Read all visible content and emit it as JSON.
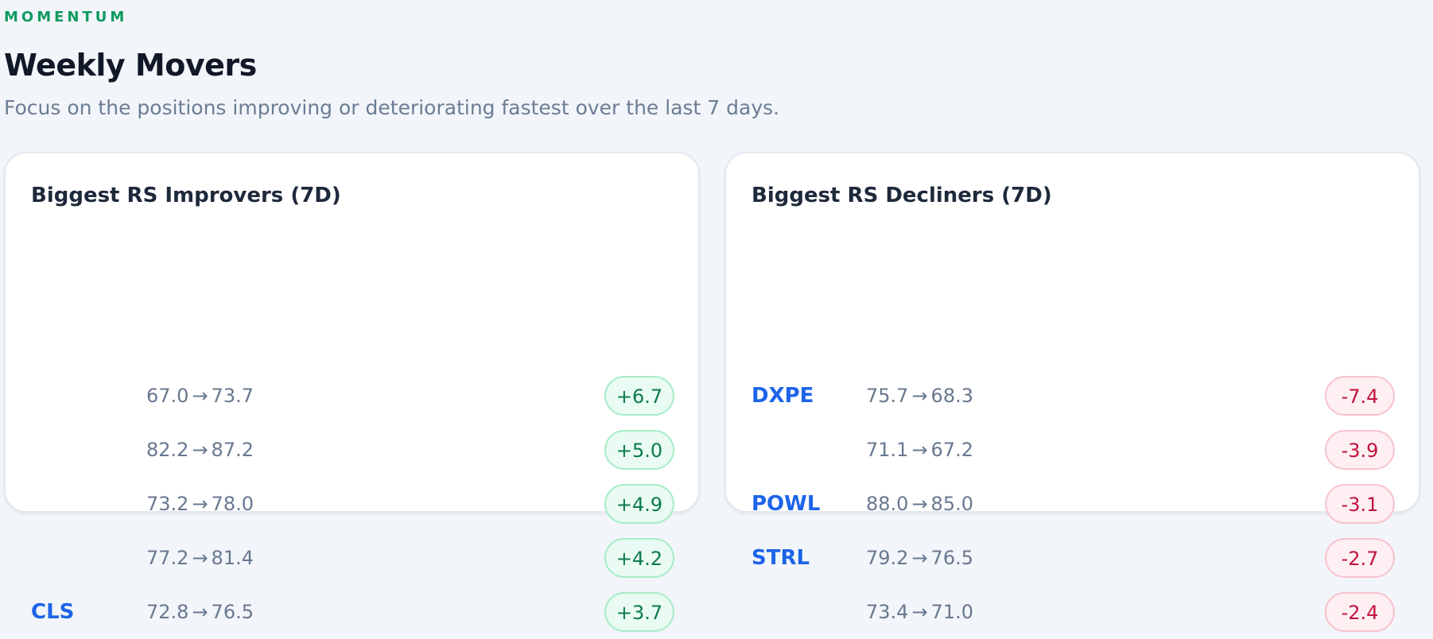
{
  "header": {
    "eyebrow": "MOMENTUM",
    "title": "Weekly Movers",
    "subtitle": "Focus on the positions improving or deteriorating fastest over the last 7 days."
  },
  "arrow_glyph": "→",
  "improvers": {
    "title": "Biggest RS Improvers (7D)",
    "rows": [
      {
        "ticker": "",
        "from": "67.0",
        "to": "73.7",
        "delta": "+6.7"
      },
      {
        "ticker": "",
        "from": "82.2",
        "to": "87.2",
        "delta": "+5.0"
      },
      {
        "ticker": "",
        "from": "73.2",
        "to": "78.0",
        "delta": "+4.9"
      },
      {
        "ticker": "",
        "from": "77.2",
        "to": "81.4",
        "delta": "+4.2"
      },
      {
        "ticker": "CLS",
        "from": "72.8",
        "to": "76.5",
        "delta": "+3.7"
      }
    ]
  },
  "decliners": {
    "title": "Biggest RS Decliners (7D)",
    "rows": [
      {
        "ticker": "DXPE",
        "from": "75.7",
        "to": "68.3",
        "delta": "-7.4"
      },
      {
        "ticker": "",
        "from": "71.1",
        "to": "67.2",
        "delta": "-3.9"
      },
      {
        "ticker": "POWL",
        "from": "88.0",
        "to": "85.0",
        "delta": "-3.1"
      },
      {
        "ticker": "STRL",
        "from": "79.2",
        "to": "76.5",
        "delta": "-2.7"
      },
      {
        "ticker": "",
        "from": "73.4",
        "to": "71.0",
        "delta": "-2.4"
      }
    ]
  },
  "colors": {
    "accent": "#0c9a5f",
    "ticker": "#1d64e8",
    "positive": "#0c7a4d",
    "negative": "#c1133c"
  }
}
